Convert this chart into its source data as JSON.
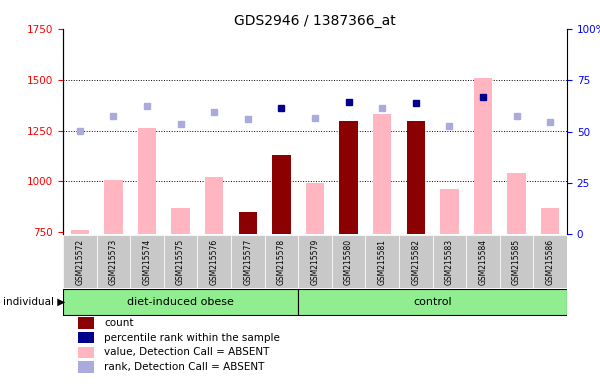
{
  "title": "GDS2946 / 1387366_at",
  "samples": [
    "GSM215572",
    "GSM215573",
    "GSM215574",
    "GSM215575",
    "GSM215576",
    "GSM215577",
    "GSM215578",
    "GSM215579",
    "GSM215580",
    "GSM215581",
    "GSM215582",
    "GSM215583",
    "GSM215584",
    "GSM215585",
    "GSM215586"
  ],
  "value_bars": [
    760,
    1005,
    1260,
    870,
    1020,
    850,
    1130,
    990,
    1295,
    1330,
    1295,
    960,
    1510,
    1040,
    870
  ],
  "value_bar_dark": [
    false,
    false,
    false,
    false,
    false,
    true,
    true,
    false,
    true,
    false,
    true,
    false,
    false,
    false,
    false
  ],
  "rank_dots": [
    1247,
    1320,
    1370,
    1280,
    1340,
    1305,
    1360,
    1310,
    1390,
    1360,
    1385,
    1270,
    1415,
    1320,
    1290
  ],
  "rank_dot_dark": [
    false,
    false,
    false,
    false,
    false,
    false,
    true,
    false,
    true,
    false,
    true,
    false,
    true,
    false,
    false
  ],
  "ymin": 740,
  "ymax": 1750,
  "yticks_left": [
    750,
    1000,
    1250,
    1500,
    1750
  ],
  "yticks_right": [
    0,
    25,
    50,
    75,
    100
  ],
  "grid_lines": [
    1000,
    1250,
    1500
  ],
  "group1_count": 7,
  "group1_label": "diet-induced obese",
  "group2_label": "control",
  "legend_labels": [
    "count",
    "percentile rank within the sample",
    "value, Detection Call = ABSENT",
    "rank, Detection Call = ABSENT"
  ],
  "color_dark_red": "#8B0000",
  "color_dark_blue": "#00008B",
  "color_pink": "#FFB6C1",
  "color_light_blue": "#AAAADD",
  "color_group_bg": "#90EE90",
  "color_cell_bg": "#C8C8C8",
  "color_plot_bg": "#FFFFFF",
  "bar_width": 0.55
}
